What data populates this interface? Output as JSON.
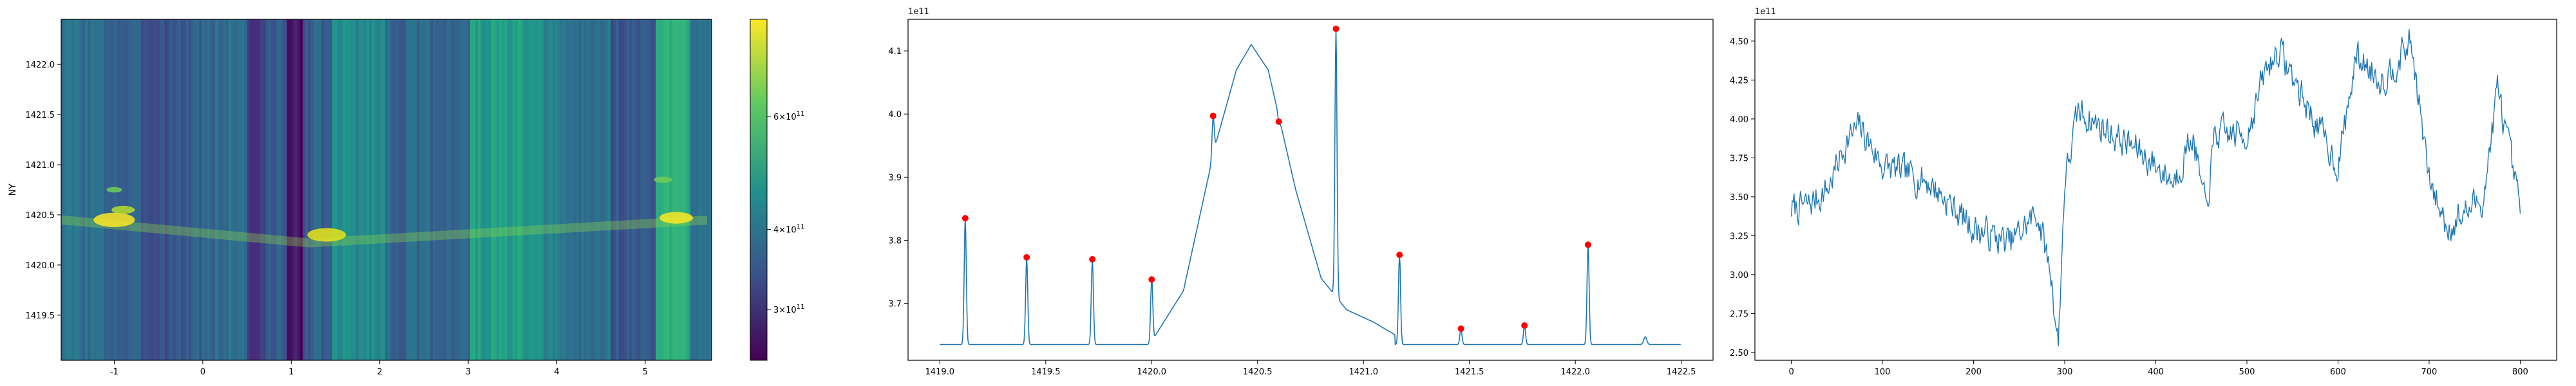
{
  "chart_data": [
    {
      "type": "heatmap",
      "ylabel": "NY",
      "xlim": [
        -1.6,
        5.75
      ],
      "ylim": [
        1419.05,
        1422.45
      ],
      "xticks": [
        "-1",
        "0",
        "1",
        "2",
        "3",
        "4",
        "5"
      ],
      "yticks": [
        "1419.5",
        "1420.0",
        "1420.5",
        "1421.0",
        "1421.5",
        "1422.0"
      ],
      "colorscale": "viridis",
      "colorbar": {
        "scale": "log",
        "range": [
          250000000000,
          850000000000
        ],
        "ticks": [
          {
            "value": 300000000000,
            "label_base": "3×10",
            "label_exp": "11"
          },
          {
            "value": 400000000000,
            "label_base": "4×10",
            "label_exp": "11"
          },
          {
            "value": 600000000000,
            "label_base": "6×10",
            "label_exp": "11"
          }
        ]
      },
      "bright_band": {
        "y_start": 1420.45,
        "y_end": 1420.22
      }
    },
    {
      "type": "line",
      "offset_label": "1e11",
      "xlim": [
        1418.85,
        1422.65
      ],
      "ylim": [
        3.61,
        4.15
      ],
      "xticks": [
        1419.0,
        1419.5,
        1420.0,
        1420.5,
        1421.0,
        1421.5,
        1422.0,
        1422.5
      ],
      "xtick_labels": [
        "1419.0",
        "1419.5",
        "1420.0",
        "1420.5",
        "1421.0",
        "1421.5",
        "1422.0",
        "1422.5"
      ],
      "yticks": [
        3.7,
        3.8,
        3.9,
        4.0,
        4.1
      ],
      "ytick_labels": [
        "3.7",
        "3.8",
        "3.9",
        "4.0",
        "4.1"
      ],
      "baseline": 3.635,
      "broad_feature": {
        "x": [
          1420.0,
          1420.15,
          1420.3,
          1420.4,
          1420.47,
          1420.55,
          1420.68,
          1420.8,
          1420.92,
          1421.05,
          1421.15
        ],
        "y": [
          3.64,
          3.72,
          3.95,
          4.07,
          4.11,
          4.07,
          3.88,
          3.74,
          3.69,
          3.67,
          3.65
        ]
      },
      "peaks": {
        "x": [
          1419.12,
          1419.41,
          1419.72,
          1420.0,
          1420.29,
          1420.6,
          1420.87,
          1421.17,
          1421.46,
          1421.76,
          1422.06
        ],
        "y": [
          3.835,
          3.773,
          3.77,
          3.738,
          3.997,
          3.988,
          4.135,
          3.777,
          3.66,
          3.665,
          3.793
        ]
      },
      "small_bump": {
        "x": 1422.33,
        "y": 3.645
      },
      "line_color": "#1f77b4",
      "marker_color": "#ff0000"
    },
    {
      "type": "line",
      "offset_label": "1e11",
      "xlim": [
        -40,
        840
      ],
      "ylim": [
        2.45,
        4.64
      ],
      "xticks": [
        0,
        100,
        200,
        300,
        400,
        500,
        600,
        700,
        800
      ],
      "xtick_labels": [
        "0",
        "100",
        "200",
        "300",
        "400",
        "500",
        "600",
        "700",
        "800"
      ],
      "yticks": [
        2.5,
        2.75,
        3.0,
        3.25,
        3.5,
        3.75,
        4.0,
        4.25,
        4.5
      ],
      "ytick_labels": [
        "2.50",
        "2.75",
        "3.00",
        "3.25",
        "3.50",
        "3.75",
        "4.00",
        "4.25",
        "4.50"
      ],
      "key_x": [
        0,
        20,
        40,
        60,
        75,
        100,
        150,
        200,
        240,
        270,
        285,
        293,
        300,
        315,
        340,
        380,
        420,
        440,
        455,
        465,
        500,
        520,
        535,
        560,
        600,
        620,
        650,
        680,
        700,
        720,
        760,
        775,
        800
      ],
      "key_y": [
        3.42,
        3.45,
        3.55,
        3.85,
        3.95,
        3.7,
        3.6,
        3.3,
        3.2,
        3.4,
        3.0,
        2.55,
        3.6,
        4.05,
        3.95,
        3.8,
        3.6,
        3.9,
        3.4,
        3.9,
        3.9,
        4.3,
        4.45,
        4.15,
        3.7,
        4.4,
        4.25,
        4.5,
        3.6,
        3.3,
        3.5,
        4.2,
        3.4
      ],
      "noise_amplitude": 0.09,
      "seed": 7,
      "line_color": "#1f77b4"
    }
  ]
}
